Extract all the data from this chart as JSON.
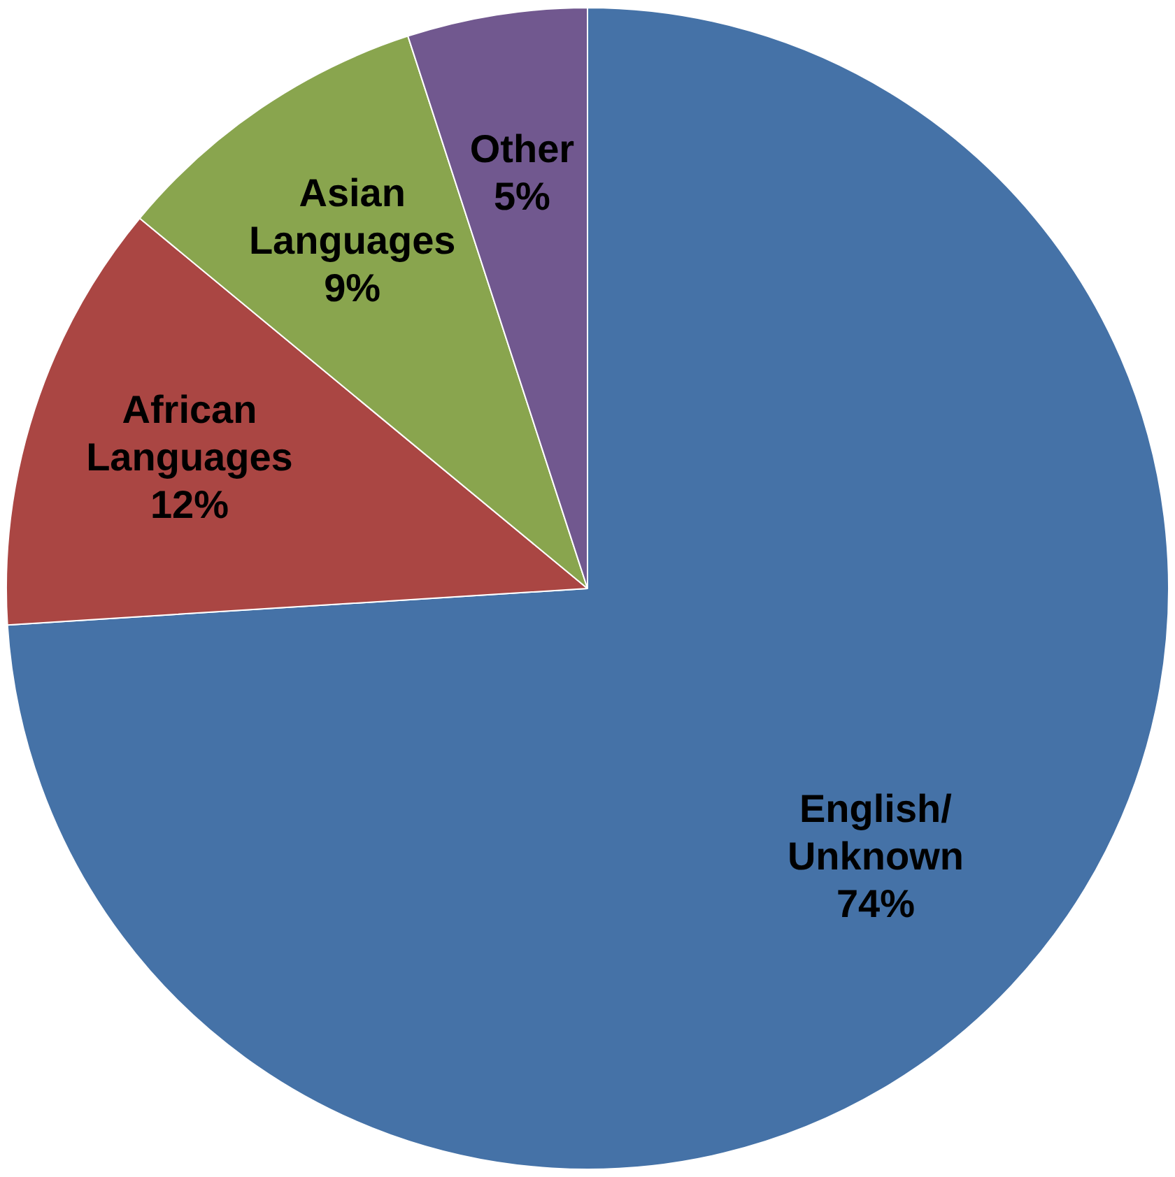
{
  "chart_data": {
    "type": "pie",
    "categories": [
      "English/Unknown",
      "African Languages",
      "Asian Languages",
      "Other"
    ],
    "values": [
      74,
      12,
      9,
      5
    ],
    "value_labels": [
      "74%",
      "12%",
      "9%",
      "5%"
    ],
    "colors": [
      "#4572a7",
      "#aa4643",
      "#89a54e",
      "#71588f"
    ],
    "legend": false
  }
}
